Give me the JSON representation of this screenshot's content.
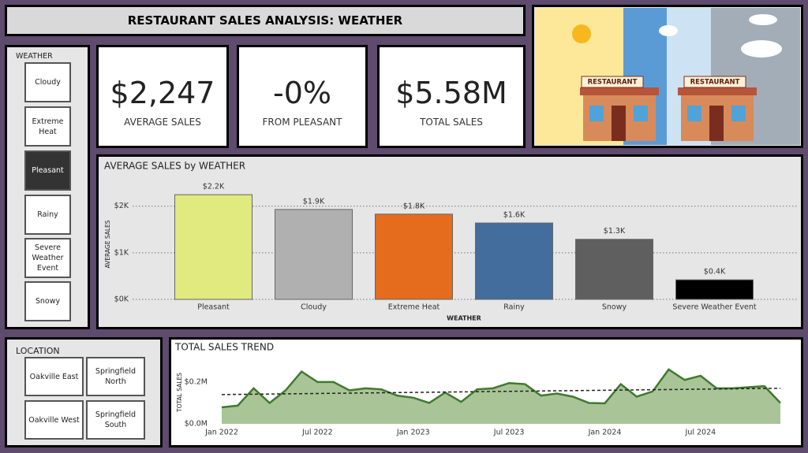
{
  "header": {
    "title": "RESTAURANT SALES ANALYSIS: WEATHER"
  },
  "image": {
    "signs": [
      "RESTAURANT",
      "RESTAURANT"
    ]
  },
  "weather_slicer": {
    "label": "WEATHER",
    "options": [
      "Cloudy",
      "Extreme Heat",
      "Pleasant",
      "Rainy",
      "Severe Weather Event",
      "Snowy"
    ],
    "selected_index": 2
  },
  "cards": [
    {
      "value": "$2,247",
      "label": "AVERAGE SALES"
    },
    {
      "value": "-0%",
      "label": "FROM PLEASANT"
    },
    {
      "value": "$5.58M",
      "label": "TOTAL SALES"
    }
  ],
  "location_slicer": {
    "label": "LOCATION",
    "options": [
      "Oakville East",
      "Springfield North",
      "Oakville West",
      "Springfield South"
    ]
  },
  "chart_data": [
    {
      "type": "bar",
      "title": "AVERAGE SALES by WEATHER",
      "x_label": "WEATHER",
      "y_label": "AVERAGE SALES",
      "categories": [
        "Pleasant",
        "Cloudy",
        "Extreme Heat",
        "Rainy",
        "Snowy",
        "Severe Weather Event"
      ],
      "values": [
        2247,
        1930,
        1830,
        1640,
        1290,
        420
      ],
      "value_labels": [
        "$2.2K",
        "$1.9K",
        "$1.8K",
        "$1.6K",
        "$1.3K",
        "$0.4K"
      ],
      "colors": [
        "#e0ea7e",
        "#b0b0b0",
        "#e46c1c",
        "#426d9c",
        "#5f5f5f",
        "#000000"
      ],
      "ylim": [
        0,
        2300
      ],
      "yticks": [
        {
          "value": 0,
          "label": "$0K"
        },
        {
          "value": 1000,
          "label": "$1K"
        },
        {
          "value": 2000,
          "label": "$2K"
        }
      ],
      "grid": true
    },
    {
      "type": "area",
      "title": "TOTAL SALES TREND",
      "y_label": "TOTAL SALES",
      "x": [
        "2022-01",
        "2022-02",
        "2022-03",
        "2022-04",
        "2022-05",
        "2022-06",
        "2022-07",
        "2022-08",
        "2022-09",
        "2022-10",
        "2022-11",
        "2022-12",
        "2023-01",
        "2023-02",
        "2023-03",
        "2023-04",
        "2023-05",
        "2023-06",
        "2023-07",
        "2023-08",
        "2023-09",
        "2023-10",
        "2023-11",
        "2023-12",
        "2024-01",
        "2024-02",
        "2024-03",
        "2024-04",
        "2024-05",
        "2024-06",
        "2024-07",
        "2024-08",
        "2024-09",
        "2024-10",
        "2024-11",
        "2024-12"
      ],
      "values": [
        79000,
        87000,
        170000,
        100000,
        160000,
        250000,
        200000,
        200000,
        160000,
        170000,
        165000,
        135000,
        125000,
        100000,
        150000,
        105000,
        165000,
        170000,
        195000,
        190000,
        135000,
        145000,
        130000,
        100000,
        98000,
        190000,
        130000,
        155000,
        260000,
        210000,
        230000,
        170000,
        170000,
        175000,
        180000,
        100000
      ],
      "xticks": [
        {
          "value": "2022-01",
          "label": "Jan 2022"
        },
        {
          "value": "2022-07",
          "label": "Jul 2022"
        },
        {
          "value": "2023-01",
          "label": "Jan 2023"
        },
        {
          "value": "2023-07",
          "label": "Jul 2023"
        },
        {
          "value": "2024-01",
          "label": "Jan 2024"
        },
        {
          "value": "2024-07",
          "label": "Jul 2024"
        }
      ],
      "ylim": [
        0,
        290000
      ],
      "yticks": [
        {
          "value": 0,
          "label": "$0.0M"
        },
        {
          "value": 200000,
          "label": "$0.2M"
        }
      ],
      "color": "#3f7a2e",
      "fill_color": "#a9c597",
      "trendline": {
        "start": 140000,
        "end": 170000
      }
    }
  ]
}
